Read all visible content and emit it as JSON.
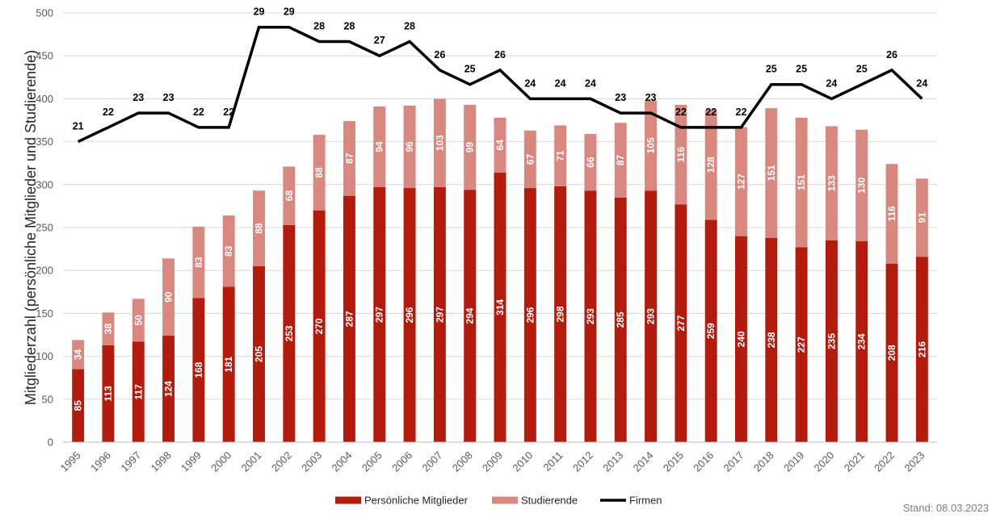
{
  "chart_data": {
    "type": "bar",
    "stacked": true,
    "categories": [
      "1995",
      "1996",
      "1997",
      "1998",
      "1999",
      "2000",
      "2001",
      "2002",
      "2003",
      "2004",
      "2005",
      "2006",
      "2007",
      "2008",
      "2009",
      "2010",
      "2011",
      "2012",
      "2013",
      "2014",
      "2015",
      "2016",
      "2017",
      "2018",
      "2019",
      "2020",
      "2021",
      "2022",
      "2023"
    ],
    "series": [
      {
        "name": "Persönliche Mitglieder",
        "type": "bar",
        "color": "#B31B0C",
        "values": [
          85,
          113,
          117,
          124,
          168,
          181,
          205,
          253,
          270,
          287,
          297,
          296,
          297,
          294,
          314,
          296,
          298,
          293,
          285,
          293,
          277,
          259,
          240,
          238,
          227,
          235,
          234,
          208,
          216
        ]
      },
      {
        "name": "Studierende",
        "type": "bar",
        "color": "#D98880",
        "values": [
          34,
          38,
          50,
          90,
          83,
          83,
          88,
          68,
          88,
          87,
          94,
          96,
          103,
          99,
          64,
          67,
          71,
          66,
          87,
          105,
          116,
          128,
          127,
          151,
          151,
          133,
          130,
          116,
          91
        ]
      },
      {
        "name": "Firmen",
        "type": "line",
        "color": "#000000",
        "values": [
          21,
          22,
          23,
          23,
          22,
          22,
          29,
          29,
          28,
          28,
          27,
          28,
          26,
          25,
          26,
          24,
          24,
          24,
          23,
          23,
          22,
          22,
          22,
          25,
          25,
          24,
          25,
          26,
          24
        ]
      }
    ],
    "ylabel": "Mitgliederzahl (persönliche Mitglieder und Studierende)",
    "xlabel": "",
    "ylim": [
      0,
      500
    ],
    "yticks": [
      0,
      50,
      100,
      150,
      200,
      250,
      300,
      350,
      400,
      450,
      500
    ],
    "line_scale": {
      "value_to_y_axis_factor": 16.6667
    },
    "grid": true,
    "legend_position": "bottom",
    "footnote": "Stand: 08.03.2023"
  }
}
